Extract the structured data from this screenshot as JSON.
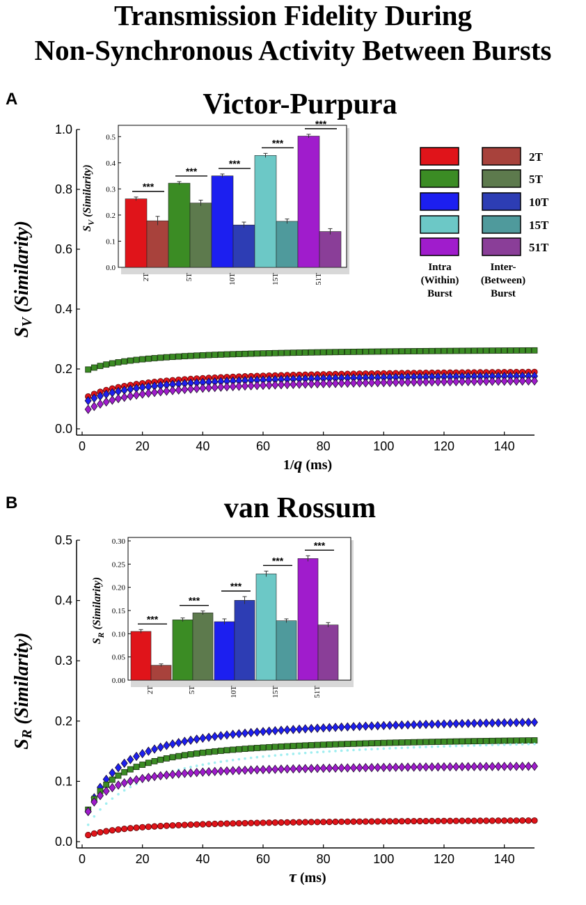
{
  "title": {
    "line1": "Transmission Fidelity During",
    "line2": "Non-Synchronous Activity Between Bursts"
  },
  "colors": {
    "red": "#e0141a",
    "green": "#3b8c24",
    "blue": "#1c1ff0",
    "cyan": "#6cc8c6",
    "magenta": "#a01ccc",
    "dark_red": "#a8423c",
    "dark_green": "#5d7a4d",
    "dark_blue": "#2d3db4",
    "dark_cyan": "#4f9a9c",
    "dark_magenta": "#8a3e98",
    "cyan_line": "#a0eef0"
  },
  "legend": {
    "inter_labels": [
      "2T",
      "5T",
      "10T",
      "15T",
      "51T"
    ],
    "intra_caption": [
      "Intra",
      "(Within)",
      "Burst"
    ],
    "inter_caption": [
      "Inter-",
      "(Between)",
      "Burst"
    ]
  },
  "chart_data": [
    {
      "panel": "A",
      "type": "scatter",
      "title": "Victor-Purpura",
      "xlabel_pre": "1/",
      "xlabel_var": "q",
      "xlabel_post": " (ms)",
      "ylabel_main": "S",
      "ylabel_sub": "V",
      "ylabel_paren": "(Similarity)",
      "xlim": [
        0,
        150
      ],
      "ylim": [
        0,
        1.0
      ],
      "xticks": [
        0,
        20,
        40,
        60,
        80,
        100,
        120,
        140
      ],
      "yticks": [
        0.0,
        0.2,
        0.4,
        0.6,
        0.8,
        1.0
      ],
      "ytick_labels": [
        "0.0",
        "0.2",
        "0.4",
        "0.6",
        "0.8",
        "1.0"
      ],
      "series": [
        {
          "name": "5T",
          "color_key": "green",
          "marker": "square",
          "start": 0.198,
          "end": 0.262,
          "k": 20
        },
        {
          "name": "2T",
          "color_key": "red",
          "marker": "circle",
          "start": 0.108,
          "end": 0.19,
          "k": 20
        },
        {
          "name": "15T",
          "color_key": "cyan",
          "marker": "point",
          "start": 0.1,
          "end": 0.185,
          "k": 20
        },
        {
          "name": "10T",
          "color_key": "blue",
          "marker": "diamond",
          "start": 0.094,
          "end": 0.176,
          "k": 20
        },
        {
          "name": "51T",
          "color_key": "magenta",
          "marker": "diamond",
          "start": 0.065,
          "end": 0.16,
          "k": 20
        }
      ],
      "inset": {
        "type": "bar",
        "ylabel_main": "S",
        "ylabel_sub": "V",
        "ylabel_paren": "(Similarity)",
        "ylim": [
          0,
          0.53
        ],
        "yticks": [
          0.0,
          0.1,
          0.2,
          0.3,
          0.4,
          0.5
        ],
        "ytick_labels": [
          "0.0",
          "0.1",
          "0.2",
          "0.3",
          "0.4",
          "0.5"
        ],
        "categories": [
          "2T",
          "5T",
          "10T",
          "15T",
          "51T"
        ],
        "intra": [
          0.262,
          0.322,
          0.35,
          0.428,
          0.502
        ],
        "inter": [
          0.178,
          0.246,
          0.162,
          0.176,
          0.137
        ],
        "intra_err": [
          0.007,
          0.006,
          0.007,
          0.008,
          0.007
        ],
        "inter_err": [
          0.017,
          0.011,
          0.011,
          0.009,
          0.011
        ],
        "significance": [
          "***",
          "***",
          "***",
          "***",
          "***"
        ]
      }
    },
    {
      "panel": "B",
      "type": "scatter",
      "title": "van Rossum",
      "xlabel_pre": "",
      "xlabel_var": "τ",
      "xlabel_post": " (ms)",
      "ylabel_main": "S",
      "ylabel_sub": "R",
      "ylabel_paren": "(Similarity)",
      "xlim": [
        0,
        150
      ],
      "ylim": [
        0,
        0.5
      ],
      "xticks": [
        0,
        20,
        40,
        60,
        80,
        100,
        120,
        140
      ],
      "yticks": [
        0.0,
        0.1,
        0.2,
        0.3,
        0.4,
        0.5
      ],
      "ytick_labels": [
        "0.0",
        "0.1",
        "0.2",
        "0.3",
        "0.4",
        "0.5"
      ],
      "series": [
        {
          "name": "10T",
          "color_key": "blue",
          "marker": "diamond",
          "start": 0.05,
          "end": 0.198,
          "k": 12
        },
        {
          "name": "5T",
          "color_key": "green",
          "marker": "square",
          "start": 0.053,
          "end": 0.168,
          "k": 12
        },
        {
          "name": "15T",
          "color_key": "cyan_line",
          "marker": "point",
          "start": 0.028,
          "end": 0.162,
          "k": 20
        },
        {
          "name": "51T",
          "color_key": "magenta",
          "marker": "diamond",
          "start": 0.05,
          "end": 0.125,
          "k": 8
        },
        {
          "name": "2T",
          "color_key": "red",
          "marker": "circle",
          "start": 0.011,
          "end": 0.035,
          "k": 20
        }
      ],
      "inset": {
        "type": "bar",
        "ylabel_main": "S",
        "ylabel_sub": "R",
        "ylabel_paren": "(Similarity)",
        "ylim": [
          0,
          0.3
        ],
        "yticks": [
          0.0,
          0.05,
          0.1,
          0.15,
          0.2,
          0.25,
          0.3
        ],
        "ytick_labels": [
          "0.00",
          "0.05",
          "0.10",
          "0.15",
          "0.20",
          "0.25",
          "0.30"
        ],
        "categories": [
          "2T",
          "5T",
          "10T",
          "15T",
          "51T"
        ],
        "intra": [
          0.105,
          0.13,
          0.126,
          0.229,
          0.262
        ],
        "inter": [
          0.032,
          0.145,
          0.172,
          0.128,
          0.119
        ],
        "intra_err": [
          0.004,
          0.004,
          0.006,
          0.006,
          0.006
        ],
        "inter_err": [
          0.003,
          0.004,
          0.008,
          0.004,
          0.005
        ],
        "significance": [
          "***",
          "***",
          "***",
          "***",
          "***"
        ]
      }
    }
  ]
}
